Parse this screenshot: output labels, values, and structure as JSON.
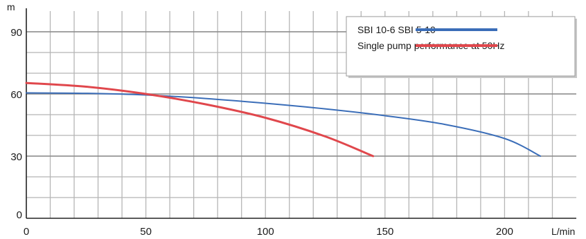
{
  "chart_data": {
    "type": "line",
    "title": "",
    "xlabel": "L/min",
    "ylabel": "m",
    "xlim": [
      0,
      230
    ],
    "ylim": [
      0,
      100
    ],
    "xticks": [
      0,
      50,
      100,
      150,
      200
    ],
    "yticks": [
      0,
      30,
      60,
      90
    ],
    "grid": true,
    "legend_position": "top-right",
    "series": [
      {
        "name": "SBI 10-6 SBI 5-10",
        "color": "#3a6db8",
        "x": [
          0,
          25,
          50,
          75,
          100,
          125,
          150,
          175,
          200,
          215
        ],
        "y": [
          60.5,
          60.3,
          59.5,
          57.8,
          55.5,
          52.8,
          49.5,
          45.3,
          38.5,
          30
        ]
      },
      {
        "name": "Single pump performance at 50Hz",
        "color": "#e0474c",
        "x": [
          0,
          25,
          50,
          75,
          100,
          125,
          145
        ],
        "y": [
          65.3,
          63.5,
          60,
          55,
          48.5,
          39.5,
          30
        ]
      }
    ]
  }
}
